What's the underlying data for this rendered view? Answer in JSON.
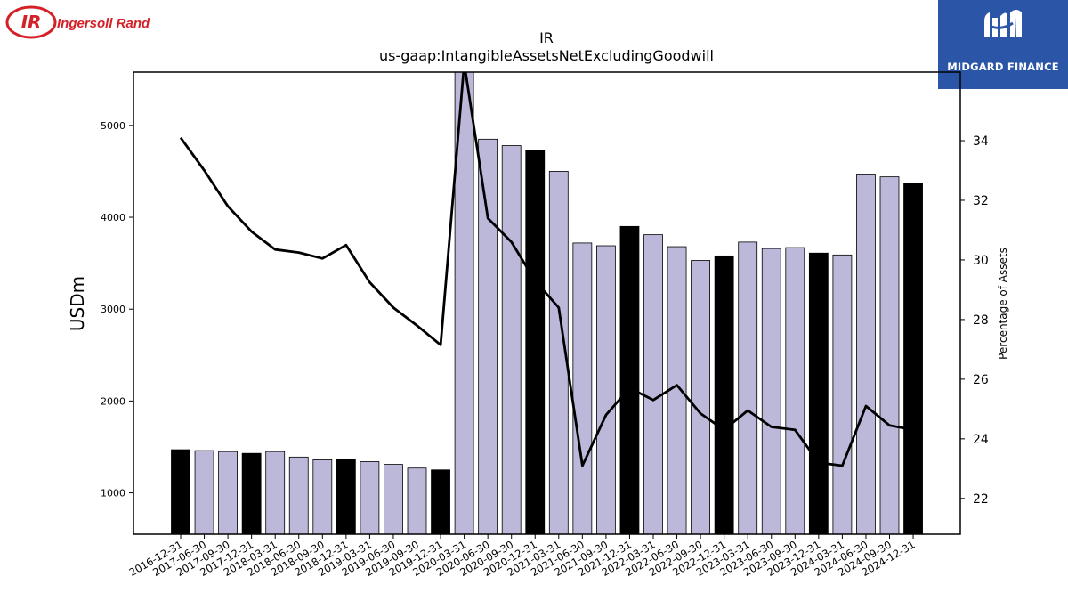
{
  "logos": {
    "left_brand": "Ingersoll Rand",
    "left_mark": "IR",
    "right_brand": "MIDGARD FINANCE"
  },
  "colors": {
    "bar_default": "#bcb8d9",
    "bar_highlight": "#000000",
    "line": "#000000",
    "ir_red": "#d42027",
    "midgard_blue": "#2b56a8"
  },
  "chart_data": {
    "type": "bar",
    "title": "IR",
    "subtitle": "us-gaap:IntangibleAssetsNetExcludingGoodwill",
    "ylabel": "USDm",
    "y2label": "Percentage of Assets",
    "ylim": [
      550,
      5580
    ],
    "y2lim": [
      20.8,
      36.3
    ],
    "yticks": [
      1000,
      2000,
      3000,
      4000,
      5000
    ],
    "y2ticks": [
      22,
      24,
      26,
      28,
      30,
      32,
      34
    ],
    "categories": [
      "2016-12-31",
      "2017-06-30",
      "2017-09-30",
      "2017-12-31",
      "2018-03-31",
      "2018-06-30",
      "2018-09-30",
      "2018-12-31",
      "2019-03-31",
      "2019-06-30",
      "2019-09-30",
      "2019-12-31",
      "2020-03-31",
      "2020-06-30",
      "2020-09-30",
      "2020-12-31",
      "2021-03-31",
      "2021-06-30",
      "2021-09-30",
      "2021-12-31",
      "2022-03-31",
      "2022-06-30",
      "2022-09-30",
      "2022-12-31",
      "2023-03-31",
      "2023-06-30",
      "2023-09-30",
      "2023-12-31",
      "2024-03-31",
      "2024-06-30",
      "2024-09-30",
      "2024-12-31"
    ],
    "series": [
      {
        "kind": "bar",
        "values": [
          1470,
          1460,
          1450,
          1430,
          1450,
          1390,
          1360,
          1370,
          1340,
          1310,
          1270,
          1250,
          5600,
          4850,
          4780,
          4730,
          4500,
          3720,
          3690,
          3900,
          3810,
          3680,
          3530,
          3580,
          3730,
          3660,
          3670,
          3610,
          3590,
          4470,
          4440,
          4370
        ],
        "highlight": [
          true,
          false,
          false,
          true,
          false,
          false,
          false,
          true,
          false,
          false,
          false,
          true,
          false,
          false,
          false,
          true,
          false,
          false,
          false,
          true,
          false,
          false,
          false,
          true,
          false,
          false,
          false,
          true,
          false,
          false,
          false,
          true
        ]
      },
      {
        "kind": "line",
        "axis": "right",
        "values": [
          34.1,
          33.0,
          31.8,
          30.95,
          30.35,
          30.25,
          30.05,
          30.5,
          29.25,
          28.4,
          27.8,
          27.15,
          36.6,
          31.4,
          30.6,
          29.3,
          28.4,
          23.1,
          24.8,
          25.7,
          25.3,
          25.8,
          24.85,
          24.3,
          24.95,
          24.4,
          24.3,
          23.2,
          23.1,
          25.1,
          24.45,
          24.3
        ]
      }
    ]
  }
}
